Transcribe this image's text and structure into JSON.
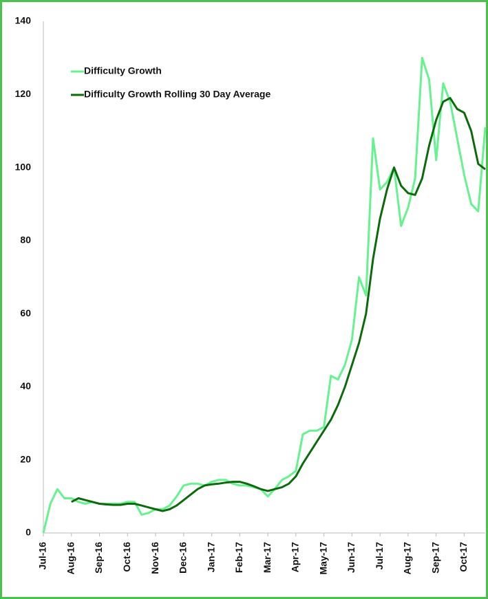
{
  "chart_data": {
    "type": "line",
    "categories": [
      "Jul-16",
      null,
      null,
      null,
      "Aug-16",
      null,
      null,
      null,
      "Sep-16",
      null,
      null,
      null,
      "Oct-16",
      null,
      null,
      null,
      "Nov-16",
      null,
      null,
      null,
      "Dec-16",
      null,
      null,
      null,
      "Jan-17",
      null,
      null,
      null,
      "Feb-17",
      null,
      null,
      null,
      "Mar-17",
      null,
      null,
      null,
      "Apr-17",
      null,
      null,
      null,
      "May-17",
      null,
      null,
      null,
      "Jun-17",
      null,
      null,
      null,
      "Jul-17",
      null,
      null,
      null,
      "Aug-17",
      null,
      null,
      null,
      "Sep-17",
      null,
      null,
      null,
      "Oct-17",
      null,
      null,
      null
    ],
    "series": [
      {
        "name": "Difficulty Growth",
        "color": "#66f28f",
        "values": [
          0,
          8,
          12,
          9.5,
          9.5,
          8.5,
          8,
          8.5,
          8,
          8,
          8,
          8,
          8.5,
          8.5,
          5,
          5.5,
          6.5,
          6.5,
          7.5,
          10,
          13,
          13.5,
          13.5,
          13,
          14,
          14.5,
          14.5,
          13.5,
          13,
          13,
          12.5,
          12,
          10,
          12,
          14.5,
          15.5,
          17,
          27,
          28,
          28,
          29,
          43,
          42,
          46,
          53,
          70,
          65,
          108,
          94,
          96,
          100,
          84,
          89,
          97,
          130,
          124,
          102,
          123,
          118,
          108,
          98,
          90,
          88,
          111
        ]
      },
      {
        "name": "Difficulty Growth Rolling 30 Day Average",
        "color": "#0b6b0b",
        "values": [
          null,
          null,
          null,
          null,
          8.5,
          9.5,
          9,
          8.5,
          8,
          7.8,
          7.7,
          7.7,
          8,
          8,
          7.5,
          7,
          6.5,
          6,
          6.5,
          7.5,
          9,
          10.5,
          12,
          13,
          13.3,
          13.5,
          13.8,
          14,
          14,
          13.5,
          12.8,
          12,
          11.5,
          12,
          12.5,
          13.5,
          15.5,
          19,
          22,
          25,
          28,
          31,
          35,
          40,
          46,
          52,
          60,
          75,
          86,
          94,
          100,
          95,
          93,
          92.5,
          97,
          106,
          113,
          118,
          119,
          116,
          115,
          110,
          101,
          99.5
        ]
      }
    ],
    "ylim": [
      0,
      140
    ],
    "yticks": [
      0,
      20,
      40,
      60,
      80,
      100,
      120,
      140
    ],
    "grid": false,
    "legend": "upper left"
  }
}
